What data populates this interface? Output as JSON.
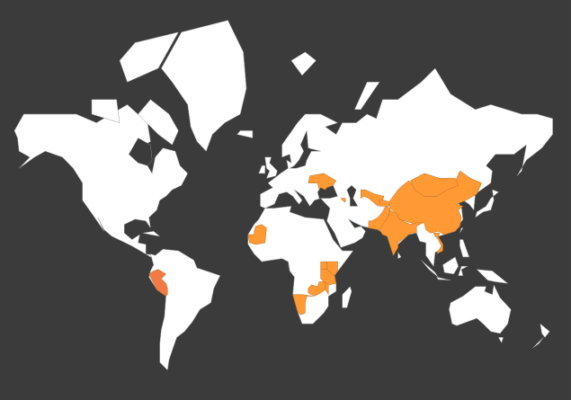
{
  "map": {
    "colors": {
      "background": "#3b3b3b",
      "land": "#ffffff",
      "border": "#9a9a9a",
      "highlight": "#ff9933",
      "hover": "#f27a45"
    },
    "regions": [
      {
        "id": "peru",
        "state": "hover"
      },
      {
        "id": "mauritania",
        "state": "highlighted"
      },
      {
        "id": "ukraine",
        "state": "highlighted"
      },
      {
        "id": "armenia",
        "state": "highlighted"
      },
      {
        "id": "uzbekistan",
        "state": "highlighted"
      },
      {
        "id": "tajikistan",
        "state": "highlighted"
      },
      {
        "id": "china",
        "state": "highlighted"
      },
      {
        "id": "mongolia",
        "state": "highlighted"
      },
      {
        "id": "india",
        "state": "highlighted"
      },
      {
        "id": "pakistan",
        "state": "highlighted"
      },
      {
        "id": "vietnam",
        "state": "highlighted"
      },
      {
        "id": "kenya",
        "state": "highlighted"
      },
      {
        "id": "uganda",
        "state": "highlighted"
      },
      {
        "id": "tanzania",
        "state": "highlighted"
      },
      {
        "id": "malawi",
        "state": "highlighted"
      },
      {
        "id": "zambia",
        "state": "highlighted"
      },
      {
        "id": "namibia",
        "state": "highlighted"
      }
    ]
  }
}
